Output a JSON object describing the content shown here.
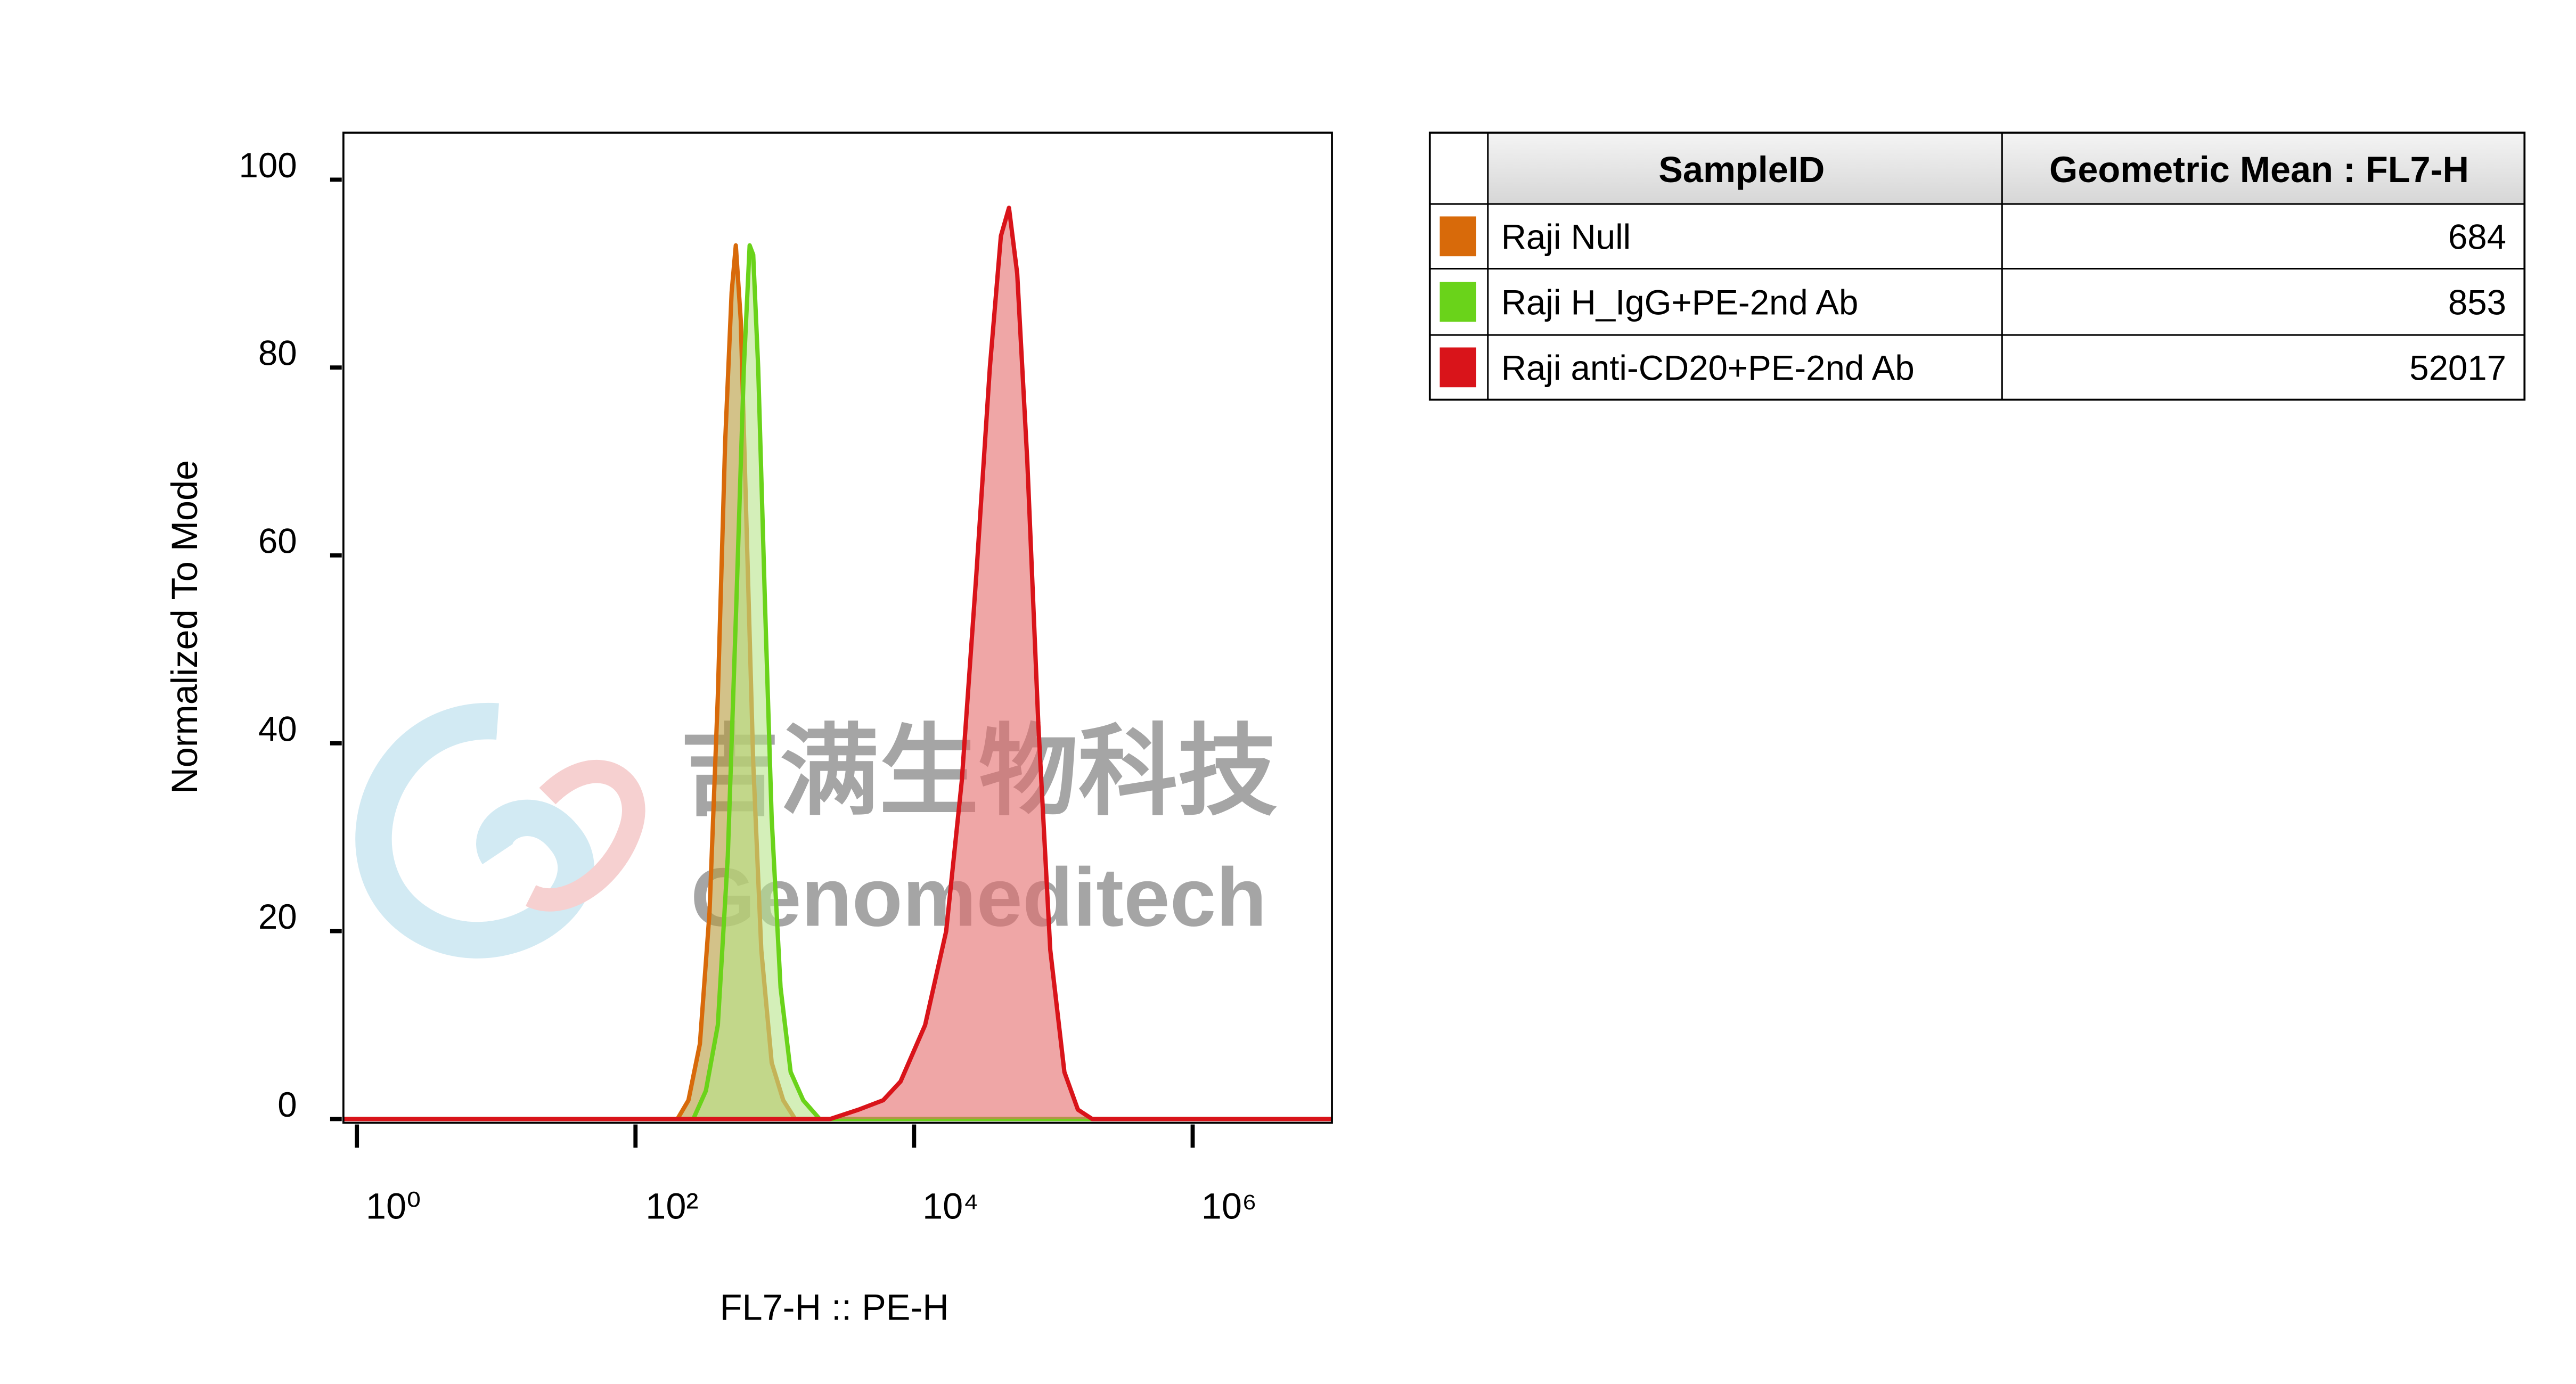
{
  "chart_data": {
    "type": "histogram-overlay",
    "xlabel": "FL7-H :: PE-H",
    "ylabel": "Normalized To Mode",
    "xscale": "log",
    "xlim": [
      0.8,
      10000000
    ],
    "ylim": [
      -0.4,
      105
    ],
    "xticks": [
      {
        "value": 1,
        "label": "10⁰"
      },
      {
        "value": 100,
        "label": "10²"
      },
      {
        "value": 10000,
        "label": "10⁴"
      },
      {
        "value": 1000000,
        "label": "10⁶"
      }
    ],
    "yticks": [
      0,
      20,
      40,
      60,
      80,
      100
    ],
    "series": [
      {
        "name": "Raji Null",
        "color": "#d86a0a",
        "fill": "#b59a3a",
        "x": [
          0.8,
          200,
          240,
          290,
          340,
          390,
          440,
          490,
          525,
          570,
          630,
          700,
          800,
          950,
          1150,
          1400,
          10000000
        ],
        "values": [
          0,
          0,
          2,
          8,
          22,
          45,
          72,
          88,
          93,
          85,
          62,
          38,
          18,
          6,
          2,
          0,
          0
        ]
      },
      {
        "name": "Raji H_IgG+PE-2nd Ab",
        "color": "#6ad31a",
        "fill": "#b7e48a",
        "x": [
          0.8,
          260,
          320,
          390,
          460,
          530,
          600,
          660,
          700,
          760,
          850,
          950,
          1100,
          1300,
          1600,
          2100,
          10000000
        ],
        "values": [
          0,
          0,
          3,
          10,
          28,
          55,
          80,
          93,
          92,
          80,
          55,
          32,
          14,
          5,
          2,
          0,
          0
        ]
      },
      {
        "name": "Raji anti-CD20+PE-2nd Ab",
        "color": "#d9141a",
        "fill": "#e46a6a",
        "x": [
          0.8,
          2500,
          4000,
          6000,
          8000,
          12000,
          17000,
          22000,
          28000,
          35000,
          42000,
          48000,
          55000,
          65000,
          78000,
          95000,
          120000,
          150000,
          190000,
          10000000
        ],
        "values": [
          0,
          0,
          1,
          2,
          4,
          10,
          20,
          36,
          58,
          80,
          94,
          97,
          90,
          70,
          42,
          18,
          5,
          1,
          0,
          0
        ]
      }
    ]
  },
  "table": {
    "headers": [
      "SampleID",
      "Geometric Mean : FL7-H"
    ],
    "values": [
      684,
      853,
      52017
    ]
  },
  "watermark": {
    "cn": "吉满生物科技",
    "en": "Genomeditech"
  }
}
